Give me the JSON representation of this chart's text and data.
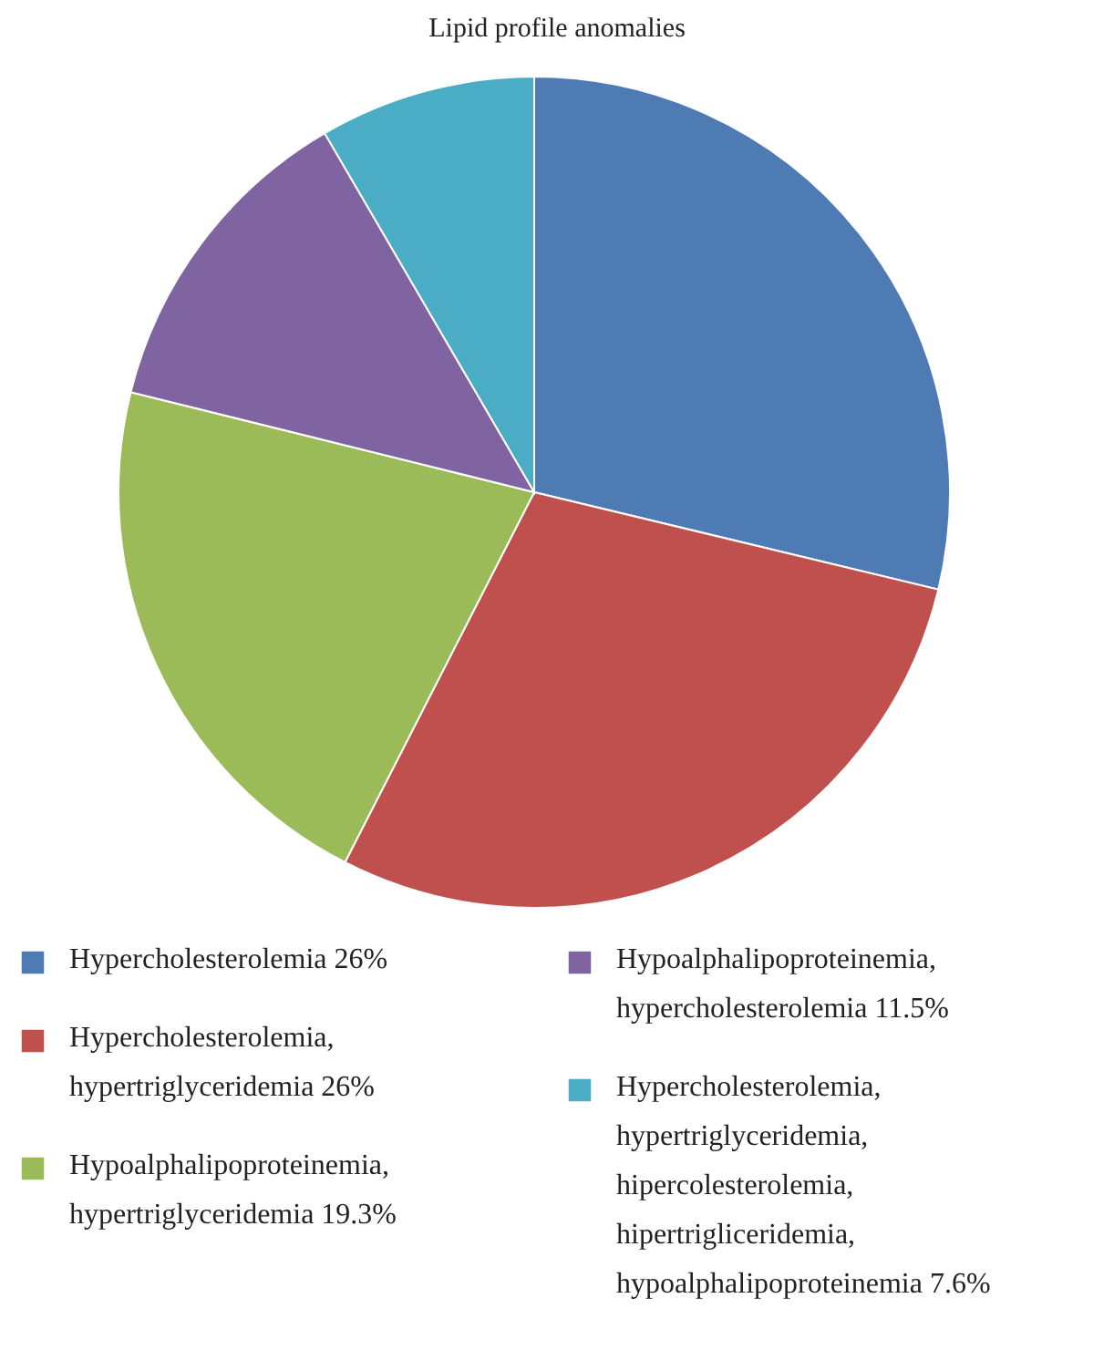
{
  "chart_data": {
    "type": "pie",
    "title": "Lipid profile anomalies",
    "categories": [
      "Hypercholesterolemia 26%",
      "Hypercholesterolemia, hypertriglyceridemia 26%",
      "Hypoalphalipoproteinemia, hypertriglyceridemia  19.3%",
      "Hypoalphalipoproteinemia, hypercholesterolemia 11.5%",
      "Hypercholesterolemia, hypertriglyceridemia, hipercolesterolemia, hipertrigliceridemia, hypoalphalipoproteinemia 7.6%"
    ],
    "values": [
      26,
      26,
      19.3,
      11.5,
      7.6
    ],
    "colors": [
      "#4f7bb5",
      "#c0504d",
      "#9bbb59",
      "#8064a2",
      "#4bacc6"
    ],
    "legend": "bottom"
  }
}
